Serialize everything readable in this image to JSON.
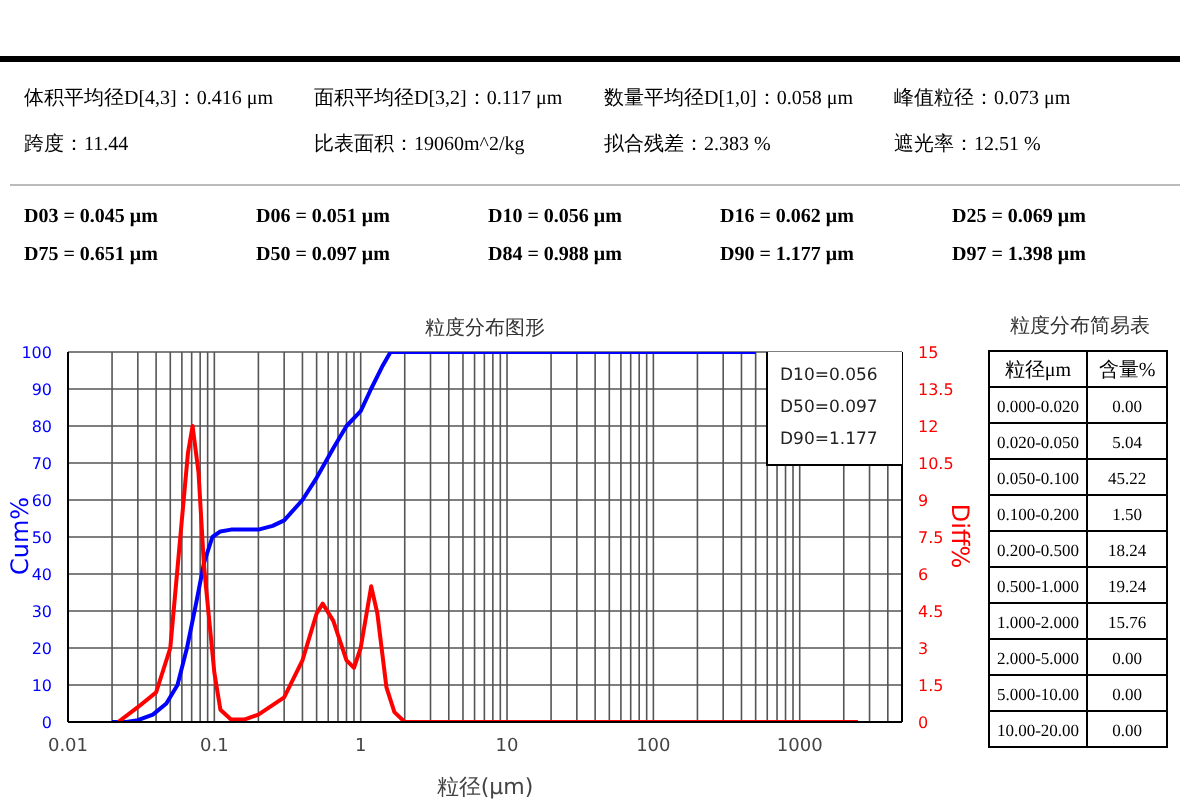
{
  "chart_data": [
    {
      "type": "other",
      "annotations": [
        "体积平均径D[4,3]：0.416 μm",
        "面积平均径D[3,2]：0.117 μm",
        "数量平均径D[1,0]：0.058 μm",
        "峰值粒径：0.073 μm",
        "跨度：11.44",
        "比表面积：19060m^2/kg",
        "拟合残差：2.383 %",
        "遮光率：12.51 %",
        "D03 = 0.045 μm",
        "D06 = 0.051 μm",
        "D10 = 0.056 μm",
        "D16 = 0.062 μm",
        "D25 = 0.069 μm",
        "D75 = 0.651 μm",
        "D50 = 0.097 μm",
        "D84 = 0.988 μm",
        "D90 = 1.177 μm",
        "D97 = 1.398 μm"
      ]
    },
    {
      "type": "line",
      "title": "粒度分布图形",
      "xlabel": "粒径(μm)",
      "ylabel": "Cum%",
      "y2label": "Diff%",
      "log": "x",
      "grid": true,
      "marker": "none",
      "line_style": "solid",
      "xlim": [
        0.01,
        5000
      ],
      "ylim": [
        0,
        100
      ],
      "y2lim": [
        0,
        15
      ],
      "xticks": [
        0.01,
        {
          "value": 0.02,
          "label": null
        },
        {
          "value": 0.03,
          "label": null
        },
        {
          "value": 0.04,
          "label": null
        },
        {
          "value": 0.05,
          "label": null
        },
        {
          "value": 0.06,
          "label": null
        },
        {
          "value": 0.07,
          "label": null
        },
        {
          "value": 0.08,
          "label": null
        },
        {
          "value": 0.09,
          "label": null
        },
        0.1,
        {
          "value": 0.2,
          "label": null
        },
        {
          "value": 0.3,
          "label": null
        },
        {
          "value": 0.4,
          "label": null
        },
        {
          "value": 0.5,
          "label": null
        },
        {
          "value": 0.6,
          "label": null
        },
        {
          "value": 0.7,
          "label": null
        },
        {
          "value": 0.8,
          "label": null
        },
        {
          "value": 0.9,
          "label": null
        },
        1,
        {
          "value": 2,
          "label": null
        },
        {
          "value": 3,
          "label": null
        },
        {
          "value": 4,
          "label": null
        },
        {
          "value": 5,
          "label": null
        },
        {
          "value": 6,
          "label": null
        },
        {
          "value": 7,
          "label": null
        },
        {
          "value": 8,
          "label": null
        },
        {
          "value": 9,
          "label": null
        },
        10,
        {
          "value": 20,
          "label": null
        },
        {
          "value": 30,
          "label": null
        },
        {
          "value": 40,
          "label": null
        },
        {
          "value": 50,
          "label": null
        },
        {
          "value": 60,
          "label": null
        },
        {
          "value": 70,
          "label": null
        },
        {
          "value": 80,
          "label": null
        },
        {
          "value": 90,
          "label": null
        },
        100,
        {
          "value": 200,
          "label": null
        },
        {
          "value": 300,
          "label": null
        },
        {
          "value": 400,
          "label": null
        },
        {
          "value": 500,
          "label": null
        },
        {
          "value": 600,
          "label": null
        },
        {
          "value": 700,
          "label": null
        },
        {
          "value": 800,
          "label": null
        },
        {
          "value": 900,
          "label": null
        },
        1000,
        {
          "value": 2000,
          "label": null
        },
        {
          "value": 3000,
          "label": null
        },
        {
          "value": 4000,
          "label": null
        }
      ],
      "yticks": [
        0,
        10,
        20,
        30,
        40,
        50,
        60,
        70,
        80,
        90,
        100
      ],
      "y2ticks": [
        0,
        1.5,
        3,
        4.5,
        6,
        7.5,
        9,
        10.5,
        12,
        13.5,
        15
      ],
      "annotations": [
        "D10=0.056",
        "D50=0.097",
        "D90=1.177"
      ],
      "series": [
        {
          "color": "#0000ff",
          "x": [
            0.02,
            0.025,
            0.03,
            0.038,
            0.047,
            0.056,
            0.065,
            0.075,
            0.085,
            0.097,
            0.11,
            0.13,
            0.2,
            0.25,
            0.3,
            0.4,
            0.5,
            0.65,
            0.8,
            1.0,
            1.177,
            1.4,
            1.6,
            2,
            10,
            100,
            500
          ],
          "values": [
            0,
            0,
            0.5,
            2,
            5,
            10,
            20,
            32,
            43,
            50,
            51.5,
            52,
            52,
            53,
            54.5,
            60,
            66,
            74,
            80,
            84,
            90,
            96,
            100,
            100,
            100,
            100,
            100
          ]
        },
        {
          "color": "#ff0000",
          "axis": "y2",
          "x": [
            0.022,
            0.03,
            0.04,
            0.05,
            0.06,
            0.066,
            0.071,
            0.078,
            0.085,
            0.1,
            0.11,
            0.13,
            0.16,
            0.2,
            0.3,
            0.4,
            0.5,
            0.55,
            0.65,
            0.8,
            0.9,
            1.0,
            1.18,
            1.3,
            1.5,
            1.7,
            2.0,
            10,
            100,
            1000,
            2500
          ],
          "values": [
            0,
            0.6,
            1.2,
            3,
            8.2,
            10.9,
            12,
            10.1,
            6.3,
            2,
            0.5,
            0.1,
            0.1,
            0.3,
            1,
            2.5,
            4.4,
            4.8,
            4.1,
            2.5,
            2.2,
            3,
            5.5,
            4.4,
            1.4,
            0.4,
            0,
            0,
            0,
            0,
            0
          ]
        }
      ]
    },
    {
      "type": "other",
      "title": "粒度分布简易表",
      "xlabel": "粒径μm",
      "ylabel": "含量%",
      "categories": [
        "0.000-0.020",
        "0.020-0.050",
        "0.050-0.100",
        "0.100-0.200",
        "0.200-0.500",
        "0.500-1.000",
        "1.000-2.000",
        "2.000-5.000",
        "5.000-10.00",
        "10.00-20.00"
      ],
      "values": [
        0,
        5.04,
        45.22,
        1.5,
        18.24,
        19.24,
        15.76,
        0,
        0,
        0
      ],
      "value_labels": [
        "0.00",
        "5.04",
        "45.22",
        "1.50",
        "18.24",
        "19.24",
        "15.76",
        "0.00",
        "0.00",
        "0.00"
      ]
    }
  ]
}
